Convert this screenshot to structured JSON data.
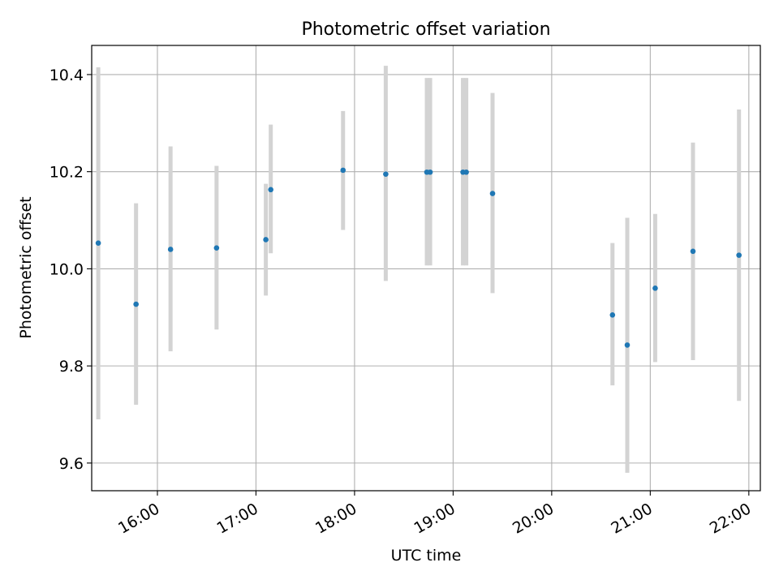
{
  "chart_data": {
    "type": "scatter",
    "title": "Photometric offset variation",
    "xlabel": "UTC time",
    "ylabel": "Photometric offset",
    "x_ticks": [
      "16:00",
      "17:00",
      "18:00",
      "19:00",
      "20:00",
      "21:00",
      "22:00"
    ],
    "y_ticks": [
      "9.6",
      "9.8",
      "10.0",
      "10.2",
      "10.4"
    ],
    "xlim": [
      "15:20",
      "22:07"
    ],
    "ylim": [
      9.543,
      10.46
    ],
    "grid": true,
    "colors": {
      "point": "#1f77b4",
      "errorbar": "#d3d3d3",
      "grid": "#b0b0b0",
      "axes": "#000000"
    },
    "series": [
      {
        "points": [
          {
            "x": "15:24",
            "y": 10.053,
            "err_low": 9.69,
            "err_high": 10.415
          },
          {
            "x": "15:47",
            "y": 9.927,
            "err_low": 9.72,
            "err_high": 10.135
          },
          {
            "x": "16:08",
            "y": 10.04,
            "err_low": 9.83,
            "err_high": 10.252
          },
          {
            "x": "16:36",
            "y": 10.043,
            "err_low": 9.875,
            "err_high": 10.212
          },
          {
            "x": "17:06",
            "y": 10.06,
            "err_low": 9.945,
            "err_high": 10.175
          },
          {
            "x": "17:09",
            "y": 10.163,
            "err_low": 10.032,
            "err_high": 10.297
          },
          {
            "x": "17:53",
            "y": 10.203,
            "err_low": 10.08,
            "err_high": 10.325
          },
          {
            "x": "18:19",
            "y": 10.195,
            "err_low": 9.975,
            "err_high": 10.418
          },
          {
            "x": "18:44",
            "y": 10.199,
            "err_low": 10.007,
            "err_high": 10.393
          },
          {
            "x": "18:46",
            "y": 10.199,
            "err_low": 10.007,
            "err_high": 10.393
          },
          {
            "x": "19:06",
            "y": 10.199,
            "err_low": 10.007,
            "err_high": 10.393
          },
          {
            "x": "19:08",
            "y": 10.199,
            "err_low": 10.007,
            "err_high": 10.393
          },
          {
            "x": "19:24",
            "y": 10.155,
            "err_low": 9.95,
            "err_high": 10.362
          },
          {
            "x": "20:37",
            "y": 9.905,
            "err_low": 9.76,
            "err_high": 10.053
          },
          {
            "x": "20:46",
            "y": 9.843,
            "err_low": 9.58,
            "err_high": 10.105
          },
          {
            "x": "21:03",
            "y": 9.96,
            "err_low": 9.808,
            "err_high": 10.113
          },
          {
            "x": "21:26",
            "y": 10.036,
            "err_low": 9.812,
            "err_high": 10.26
          },
          {
            "x": "21:54",
            "y": 10.028,
            "err_low": 9.728,
            "err_high": 10.328
          }
        ]
      }
    ]
  }
}
